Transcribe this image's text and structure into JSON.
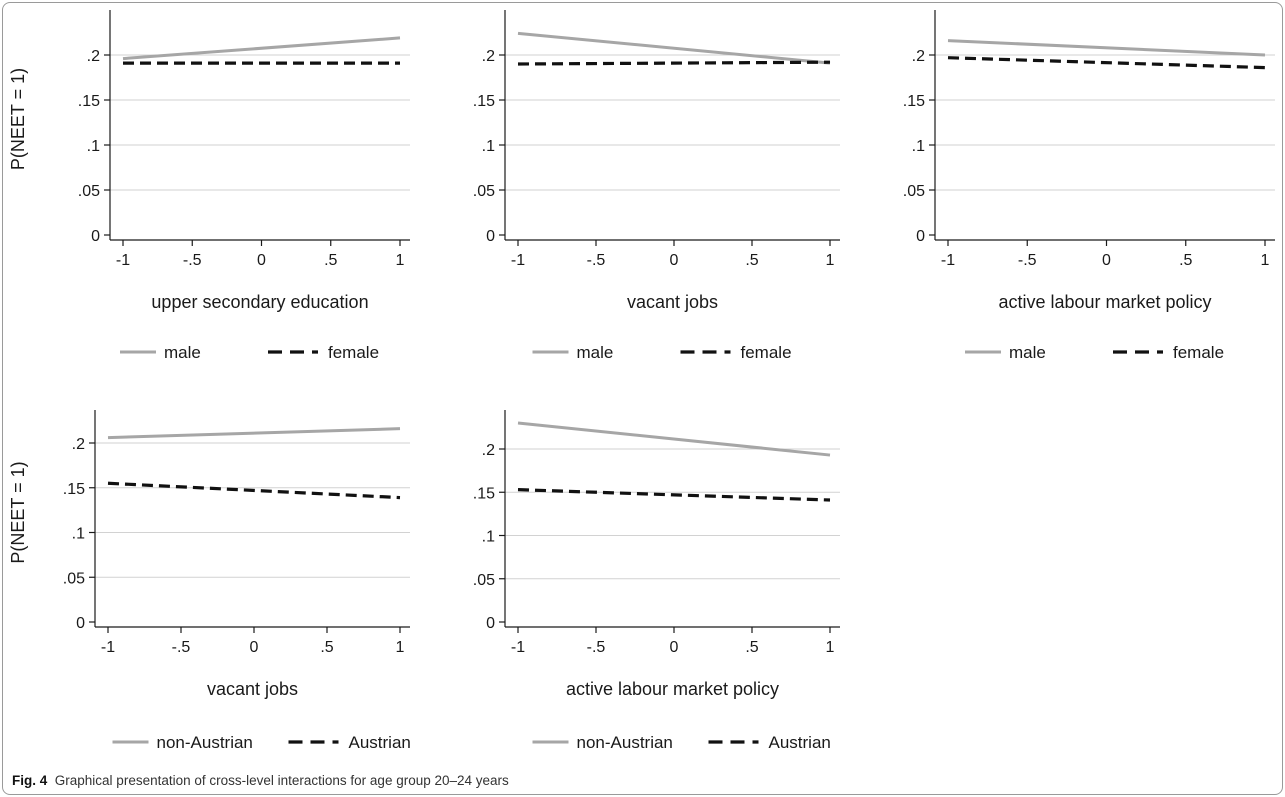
{
  "figure": {
    "caption_label": "Fig. 4",
    "caption_text": "Graphical presentation of cross-level interactions for age group 20–24 years"
  },
  "colors": {
    "series_solid": "#a6a6a6",
    "series_dashed": "#111111",
    "grid": "#d2d2d2",
    "axis": "#1a1a1a"
  },
  "chart_data": [
    {
      "type": "line",
      "ylabel": "P(NEET = 1)",
      "xlabel": "upper secondary education",
      "x_ticks": [
        "-1",
        "-.5",
        "0",
        ".5",
        "1"
      ],
      "y_ticks": [
        "0",
        ".05",
        ".1",
        ".15",
        ".2"
      ],
      "xlim": [
        -1,
        1
      ],
      "ylim": [
        0,
        0.2
      ],
      "grid": true,
      "legend_position": "bottom",
      "series": [
        {
          "name": "male",
          "style": "solid",
          "x": [
            -1,
            1
          ],
          "y": [
            0.196,
            0.219
          ]
        },
        {
          "name": "female",
          "style": "dashed",
          "x": [
            -1,
            1
          ],
          "y": [
            0.191,
            0.191
          ]
        }
      ]
    },
    {
      "type": "line",
      "ylabel": "",
      "xlabel": "vacant jobs",
      "x_ticks": [
        "-1",
        "-.5",
        "0",
        ".5",
        "1"
      ],
      "y_ticks": [
        "0",
        ".05",
        ".1",
        ".15",
        ".2"
      ],
      "xlim": [
        -1,
        1
      ],
      "ylim": [
        0,
        0.2
      ],
      "grid": true,
      "legend_position": "bottom",
      "series": [
        {
          "name": "male",
          "style": "solid",
          "x": [
            -1,
            1
          ],
          "y": [
            0.224,
            0.191
          ]
        },
        {
          "name": "female",
          "style": "dashed",
          "x": [
            -1,
            1
          ],
          "y": [
            0.19,
            0.192
          ]
        }
      ]
    },
    {
      "type": "line",
      "ylabel": "",
      "xlabel": "active labour market policy",
      "x_ticks": [
        "-1",
        "-.5",
        "0",
        ".5",
        "1"
      ],
      "y_ticks": [
        "0",
        ".05",
        ".1",
        ".15",
        ".2"
      ],
      "xlim": [
        -1,
        1
      ],
      "ylim": [
        0,
        0.2
      ],
      "grid": true,
      "legend_position": "bottom",
      "series": [
        {
          "name": "male",
          "style": "solid",
          "x": [
            -1,
            1
          ],
          "y": [
            0.216,
            0.2
          ]
        },
        {
          "name": "female",
          "style": "dashed",
          "x": [
            -1,
            1
          ],
          "y": [
            0.197,
            0.186
          ]
        }
      ]
    },
    {
      "type": "line",
      "ylabel": "P(NEET = 1)",
      "xlabel": "vacant jobs",
      "x_ticks": [
        "-1",
        "-.5",
        "0",
        ".5",
        "1"
      ],
      "y_ticks": [
        "0",
        ".05",
        ".1",
        ".15",
        ".2"
      ],
      "xlim": [
        -1,
        1
      ],
      "ylim": [
        0,
        0.2
      ],
      "grid": true,
      "legend_position": "bottom",
      "series": [
        {
          "name": "non-Austrian",
          "style": "solid",
          "x": [
            -1,
            1
          ],
          "y": [
            0.206,
            0.216
          ]
        },
        {
          "name": "Austrian",
          "style": "dashed",
          "x": [
            -1,
            1
          ],
          "y": [
            0.155,
            0.139
          ]
        }
      ]
    },
    {
      "type": "line",
      "ylabel": "",
      "xlabel": "active labour market policy",
      "x_ticks": [
        "-1",
        "-.5",
        "0",
        ".5",
        "1"
      ],
      "y_ticks": [
        "0",
        ".05",
        ".1",
        ".15",
        ".2"
      ],
      "xlim": [
        -1,
        1
      ],
      "ylim": [
        0,
        0.2
      ],
      "grid": true,
      "legend_position": "bottom",
      "series": [
        {
          "name": "non-Austrian",
          "style": "solid",
          "x": [
            -1,
            1
          ],
          "y": [
            0.23,
            0.193
          ]
        },
        {
          "name": "Austrian",
          "style": "dashed",
          "x": [
            -1,
            1
          ],
          "y": [
            0.153,
            0.141
          ]
        }
      ]
    }
  ]
}
